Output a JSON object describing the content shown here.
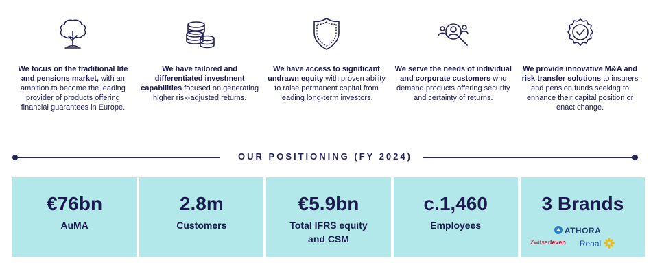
{
  "pillars": [
    {
      "icon": "tree-icon",
      "bold": "We focus on the traditional life and pensions market,",
      "rest": " with an ambition to become the leading provider of products offering financial guarantees in Europe."
    },
    {
      "icon": "coins-icon",
      "bold": "We have tailored and differentiated investment capabilities",
      "rest": " focused on generating higher risk-adjusted returns."
    },
    {
      "icon": "shield-icon",
      "bold": "We have access to significant undrawn equity",
      "rest": " with proven ability to raise permanent capital from leading long-term investors."
    },
    {
      "icon": "customer-search-icon",
      "bold": "We serve the needs of individual and corporate customers",
      "rest": " who demand products offering security and certainty of returns."
    },
    {
      "icon": "check-badge-icon",
      "bold": "We provide innovative M&A and risk transfer solutions",
      "rest": " to insurers and pension funds seeking to enhance their capital position or enact change."
    }
  ],
  "section_title": "OUR POSITIONING (FY 2024)",
  "stats": [
    {
      "value": "€76bn",
      "label": "AuMA"
    },
    {
      "value": "2.8m",
      "label": "Customers"
    },
    {
      "value": "€5.9bn",
      "label": "Total IFRS equity and CSM"
    },
    {
      "value": "c.1,460",
      "label": "Employees"
    },
    {
      "value": "3 Brands",
      "label": ""
    }
  ],
  "brands": {
    "athora": "ATHORA",
    "zwitser": "Zwitser",
    "leven": "leven",
    "reaal": "Reaal"
  },
  "colors": {
    "navy": "#1b1b4f",
    "tile": "#b3e8ea"
  }
}
